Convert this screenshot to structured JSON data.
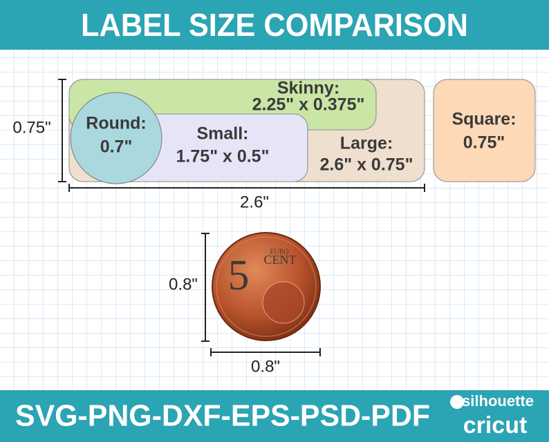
{
  "header": {
    "title": "LABEL SIZE COMPARISON"
  },
  "labels": [
    {
      "name": "Round:",
      "size": "0.7\""
    },
    {
      "name": "Small:",
      "size": "1.75\" x 0.5\""
    },
    {
      "name": "Skinny:",
      "size": "2.25\" x 0.375\""
    },
    {
      "name": "Large:",
      "size": "2.6\" x 0.75\""
    },
    {
      "name": "Square:",
      "size": "0.75\""
    }
  ],
  "dimensions": {
    "height": "0.75\"",
    "width": "2.6\""
  },
  "coin": {
    "denomination": "5",
    "currency": "EURO",
    "unit": "CENT",
    "height": "0.8\"",
    "width": "0.8\""
  },
  "footer": {
    "formats": "SVG-PNG-DXF-EPS-PSD-PDF",
    "brands": [
      "silhouette",
      "cricut"
    ]
  }
}
